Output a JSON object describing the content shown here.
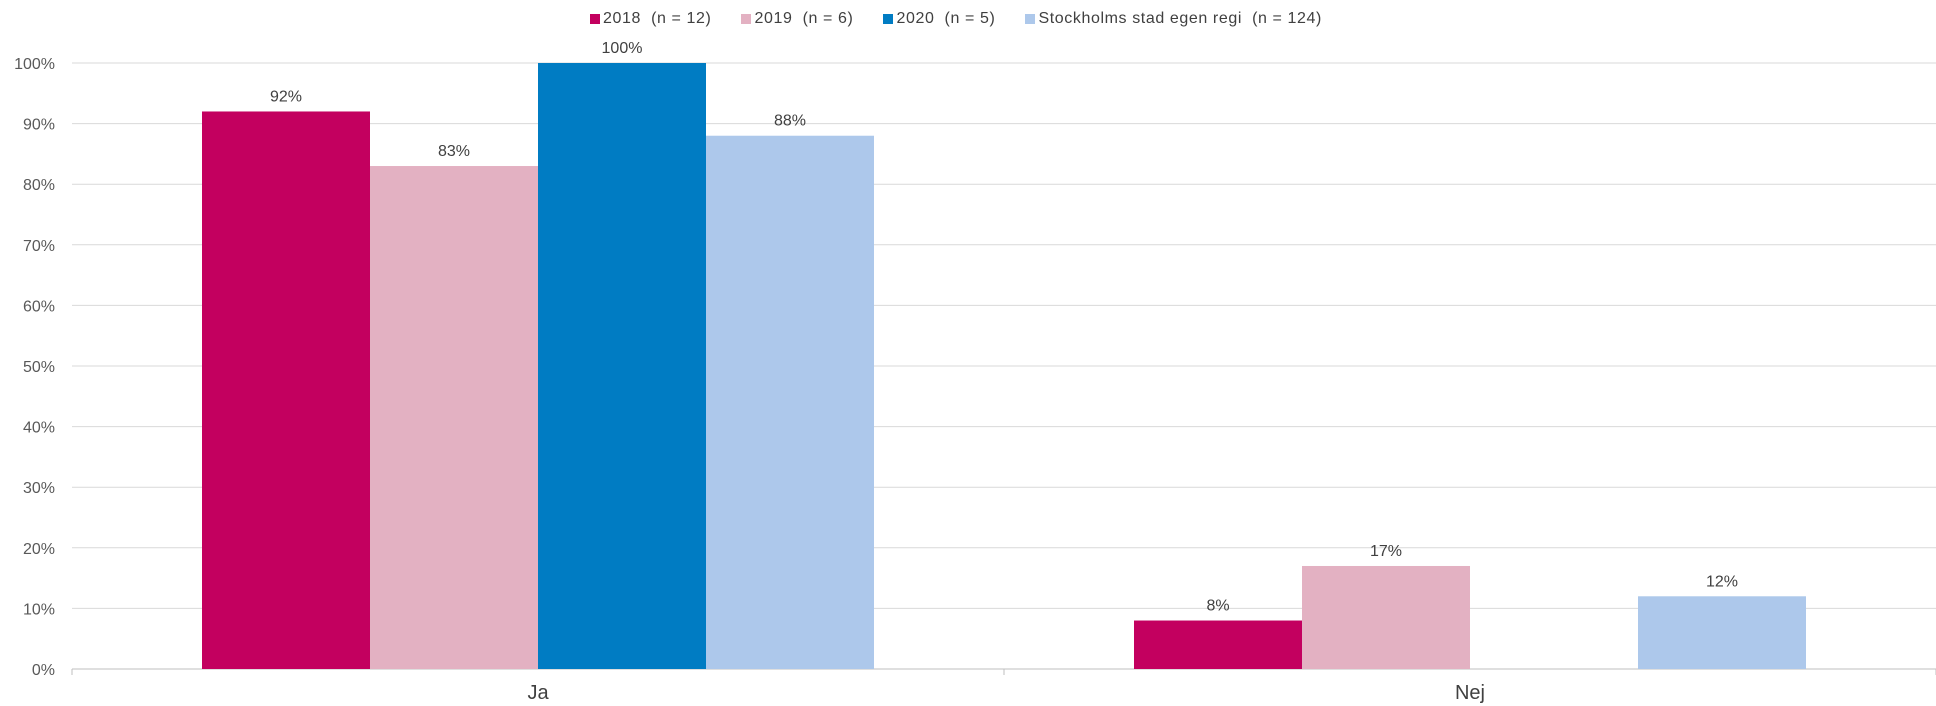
{
  "chart_data": {
    "type": "bar",
    "categories": [
      "Ja",
      "Nej"
    ],
    "series": [
      {
        "name": "2018  (n = 12)",
        "color": "#c3005f",
        "values": [
          0.92,
          0.08
        ],
        "labels": [
          "92%",
          "8%"
        ]
      },
      {
        "name": "2019  (n = 6)",
        "color": "#e3b1c2",
        "values": [
          0.83,
          0.17
        ],
        "labels": [
          "83%",
          "17%"
        ]
      },
      {
        "name": "2020  (n = 5)",
        "color": "#007cc3",
        "values": [
          1.0,
          0.0
        ],
        "labels": [
          "100%",
          ""
        ]
      },
      {
        "name": "Stockholms stad egen regi  (n = 124)",
        "color": "#adc8eb",
        "values": [
          0.88,
          0.12
        ],
        "labels": [
          "88%",
          "12%"
        ]
      }
    ],
    "ylim": [
      0,
      1
    ],
    "yticks": [
      "0%",
      "10%",
      "20%",
      "30%",
      "40%",
      "50%",
      "60%",
      "70%",
      "80%",
      "90%",
      "100%"
    ],
    "grid": true,
    "legend_position": "top",
    "title": "",
    "xlabel": "",
    "ylabel": ""
  }
}
